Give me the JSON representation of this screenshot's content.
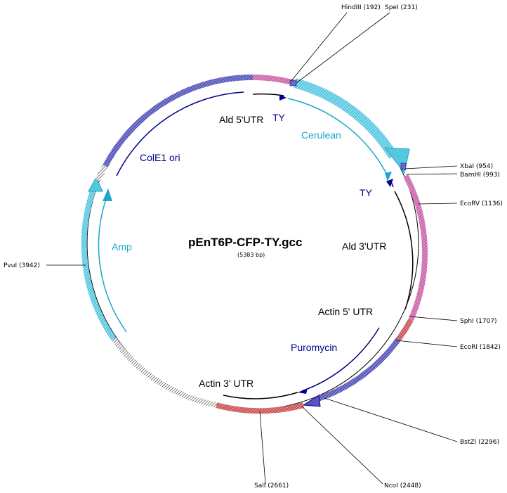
{
  "plasmid": {
    "name": "pEnT6P-CFP-TY.gcc",
    "size_label": "(5383 bp)",
    "length_bp": 5383
  },
  "colors": {
    "pink": "#cc66aa",
    "cyan": "#55c8e0",
    "cyan_dark": "#1aa6cc",
    "navy": "#000088",
    "purple": "#5555bb",
    "red": "#cc5555",
    "black": "#000000"
  },
  "features": {
    "ald5utr": "Ald 5'UTR",
    "ty_top": "TY",
    "cerulean": "Cerulean",
    "colE1": "ColE1 ori",
    "ty_right": "TY",
    "ald3utr": "Ald 3'UTR",
    "amp": "Amp",
    "actin5utr": "Actin 5' UTR",
    "puromycin": "Puromycin",
    "actin3utr": "Actin 3' UTR"
  },
  "sites": {
    "hindiii": "HindIII (192)",
    "spei": "SpeI (231)",
    "xbai": "XbaI (954)",
    "bamhi": "BamHI (993)",
    "ecorv": "EcoRV (1136)",
    "sphi": "SphI (1707)",
    "ecori": "EcoRI (1842)",
    "bstzi": "BstZI (2296)",
    "ncoi": "NcoI (2448)",
    "sali": "SalI (2661)",
    "pvui": "PvuI (3942)"
  }
}
